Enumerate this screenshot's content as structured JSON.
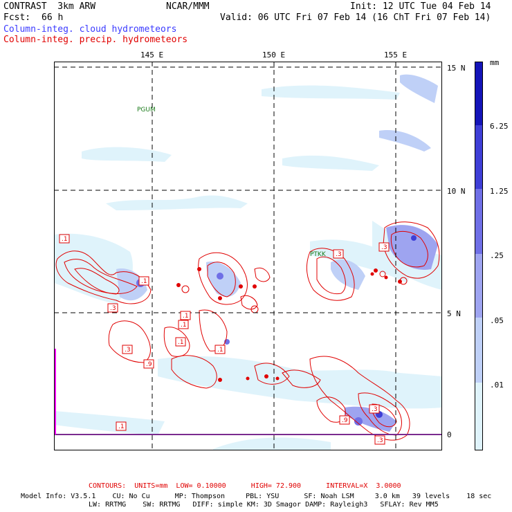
{
  "header": {
    "title_left": "CONTRAST  3km ARW",
    "title_center": "NCAR/MMM",
    "init": "Init: 12 UTC Tue 04 Feb 14",
    "fcst_label": "Fcst:",
    "fcst_value": "66 h",
    "valid": "Valid: 06 UTC Fri 07 Feb 14 (16 ChT Fri 07 Feb 14)",
    "field1": "Column-integ. cloud hydrometeors",
    "field2": "Column-integ. precip. hydrometeors"
  },
  "map": {
    "lon_labels": [
      "145 E",
      "150 E",
      "155 E"
    ],
    "lat_labels": [
      "15 N",
      "10 N",
      "5 N",
      "0"
    ],
    "stations": [
      "PGUM",
      "PTKK"
    ],
    "contour_labels": [
      ".1",
      ".1",
      ".3",
      ".1",
      ".3",
      ".1",
      ".9",
      ".1",
      ".1",
      ".3",
      ".3",
      ".9",
      ".3",
      ".3",
      ".1"
    ]
  },
  "legend": {
    "units": "mm",
    "levels": [
      "6.25",
      "1.25",
      ".25",
      ".05",
      ".01"
    ],
    "colors": [
      "#ffffff",
      "#dff3fb",
      "#bfd0f7",
      "#9ea4f0",
      "#6f6fe6",
      "#3e3ed6",
      "#1414b8"
    ]
  },
  "footer": {
    "contours": "CONTOURS:  UNITS=mm  LOW= 0.10000      HIGH= 72.900      INTERVAL=X  3.0000",
    "model_line1": "Model Info: V3.5.1    CU: No Cu      MP: Thompson     PBL: YSU      SF: Noah LSM     3.0 km   39 levels    18 sec",
    "model_line2": "LW: RRTMG    SW: RRTMG   DIFF: simple KM: 3D Smagor DAMP: Rayleigh3   SFLAY: Rev MM5"
  }
}
